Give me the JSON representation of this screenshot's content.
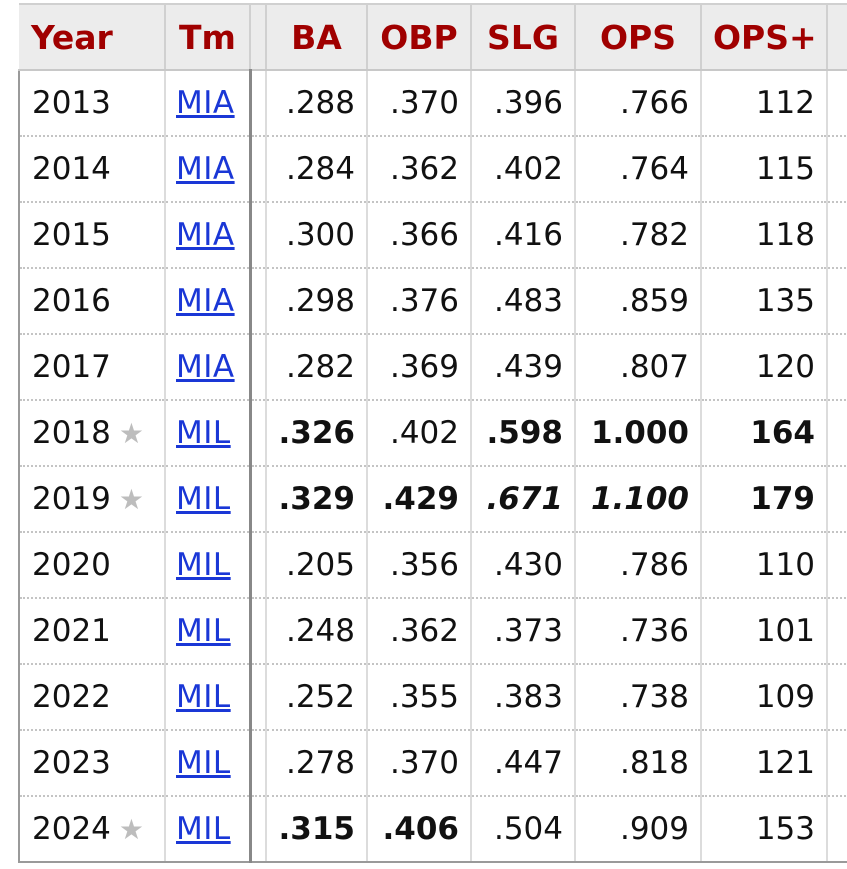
{
  "table": {
    "headers": {
      "year": "Year",
      "team": "Tm",
      "ba": "BA",
      "obp": "OBP",
      "slg": "SLG",
      "ops": "OPS",
      "ops_plus": "OPS+"
    },
    "star_glyph": "★",
    "rows": [
      {
        "year": "2013",
        "team": "MIA",
        "ba": ".288",
        "obp": ".370",
        "slg": ".396",
        "ops": ".766",
        "ops_plus": "112"
      },
      {
        "year": "2014",
        "team": "MIA",
        "ba": ".284",
        "obp": ".362",
        "slg": ".402",
        "ops": ".764",
        "ops_plus": "115"
      },
      {
        "year": "2015",
        "team": "MIA",
        "ba": ".300",
        "obp": ".366",
        "slg": ".416",
        "ops": ".782",
        "ops_plus": "118"
      },
      {
        "year": "2016",
        "team": "MIA",
        "ba": ".298",
        "obp": ".376",
        "slg": ".483",
        "ops": ".859",
        "ops_plus": "135"
      },
      {
        "year": "2017",
        "team": "MIA",
        "ba": ".282",
        "obp": ".369",
        "slg": ".439",
        "ops": ".807",
        "ops_plus": "120"
      },
      {
        "year": "2018",
        "team": "MIL",
        "ba": ".326",
        "obp": ".402",
        "slg": ".598",
        "ops": "1.000",
        "ops_plus": "164"
      },
      {
        "year": "2019",
        "team": "MIL",
        "ba": ".329",
        "obp": ".429",
        "slg": ".671",
        "ops": "1.100",
        "ops_plus": "179"
      },
      {
        "year": "2020",
        "team": "MIL",
        "ba": ".205",
        "obp": ".356",
        "slg": ".430",
        "ops": ".786",
        "ops_plus": "110"
      },
      {
        "year": "2021",
        "team": "MIL",
        "ba": ".248",
        "obp": ".362",
        "slg": ".373",
        "ops": ".736",
        "ops_plus": "101"
      },
      {
        "year": "2022",
        "team": "MIL",
        "ba": ".252",
        "obp": ".355",
        "slg": ".383",
        "ops": ".738",
        "ops_plus": "109"
      },
      {
        "year": "2023",
        "team": "MIL",
        "ba": ".278",
        "obp": ".370",
        "slg": ".447",
        "ops": ".818",
        "ops_plus": "121"
      },
      {
        "year": "2024",
        "team": "MIL",
        "ba": ".315",
        "obp": ".406",
        "slg": ".504",
        "ops": ".909",
        "ops_plus": "153"
      }
    ]
  }
}
